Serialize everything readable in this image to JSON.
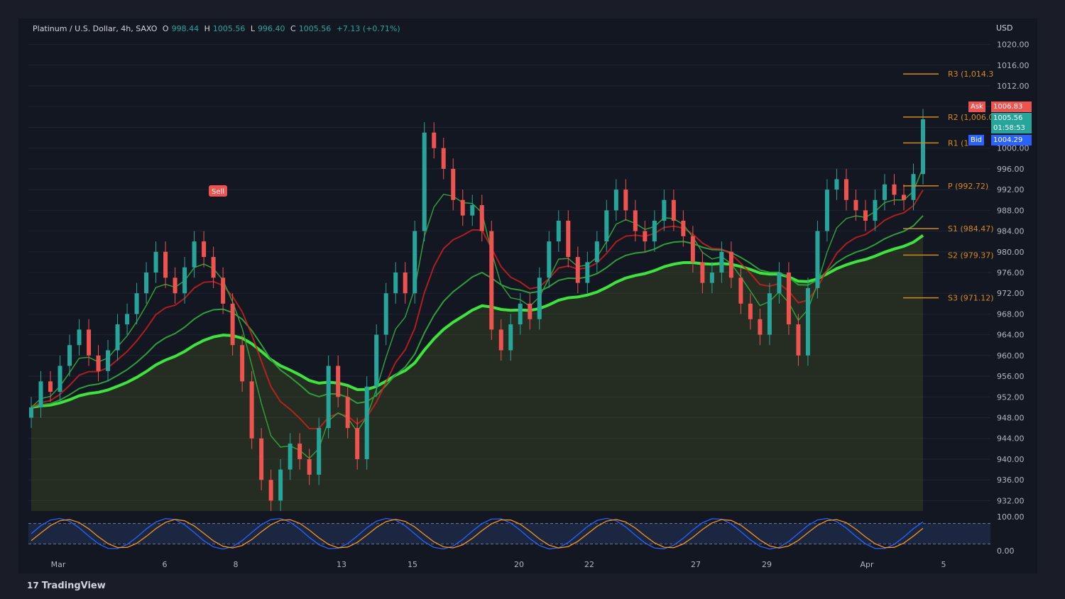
{
  "header": {
    "symbol": "Platinum / U.S. Dollar, 4h, SAXO",
    "open_label": "O",
    "open": "998.44",
    "high_label": "H",
    "high": "1005.56",
    "low_label": "L",
    "low": "996.40",
    "close_label": "C",
    "close": "1005.56",
    "change": "+7.13 (+0.71%)"
  },
  "currency": "USD",
  "brand": "TradingView",
  "price_tags": {
    "ask_label": "Ask",
    "ask": "1006.83",
    "last": "1005.56",
    "countdown": "01:58:53",
    "bid_label": "Bid",
    "bid": "1004.29"
  },
  "signal_label": "Sell",
  "colors": {
    "up": "#26a69a",
    "down": "#ef5350",
    "pivot": "#d48a1e",
    "ema_bright": "#39e639",
    "ema_dark": "#2e9e3a",
    "ema_red": "#d81f1f",
    "background": "#131722"
  },
  "chart_data": {
    "type": "line",
    "y_axis": {
      "range": [
        930,
        1022
      ],
      "ticks": [
        "1020.00",
        "1016.00",
        "1012.00",
        "1008.00",
        "1004.00",
        "1000.00",
        "996.00",
        "992.00",
        "988.00",
        "984.00",
        "980.00",
        "976.00",
        "972.00",
        "968.00",
        "964.00",
        "960.00",
        "956.00",
        "952.00",
        "948.00",
        "944.00",
        "940.00",
        "936.00",
        "932.00"
      ]
    },
    "x_axis": {
      "ticks": [
        "Mar",
        "6",
        "8",
        "13",
        "15",
        "20",
        "22",
        "27",
        "29",
        "Apr",
        "5"
      ]
    },
    "pivots": [
      {
        "label": "R3 (1,014.3",
        "value": 1014.3
      },
      {
        "label": "R2 (1,006.0",
        "value": 1006.0
      },
      {
        "label": "R1 (1",
        "value": 1001.0
      },
      {
        "label": "P (992.72)",
        "value": 992.72
      },
      {
        "label": "S1 (984.47)",
        "value": 984.47
      },
      {
        "label": "S2 (979.37)",
        "value": 979.37
      },
      {
        "label": "S3 (971.12)",
        "value": 971.12
      }
    ],
    "close_series": [
      950,
      955,
      953,
      958,
      962,
      965,
      960,
      957,
      961,
      966,
      968,
      972,
      976,
      980,
      975,
      972,
      977,
      982,
      979,
      975,
      970,
      962,
      955,
      944,
      936,
      932,
      938,
      943,
      940,
      937,
      946,
      958,
      952,
      946,
      940,
      954,
      964,
      972,
      976,
      972,
      984,
      1003,
      1000,
      996,
      990,
      987,
      989,
      984,
      965,
      961,
      966,
      970,
      967,
      975,
      982,
      986,
      979,
      974,
      978,
      982,
      988,
      992,
      988,
      984,
      982,
      986,
      990,
      986,
      983,
      978,
      974,
      976,
      980,
      975,
      970,
      967,
      964,
      972,
      976,
      966,
      960,
      973,
      984,
      992,
      994,
      990,
      988,
      986,
      990,
      993,
      991,
      990,
      995,
      1005.56
    ],
    "oscillator": {
      "range": [
        0,
        100
      ],
      "ticks": [
        "100.00",
        "0.00"
      ],
      "levels": [
        80,
        20
      ]
    }
  }
}
